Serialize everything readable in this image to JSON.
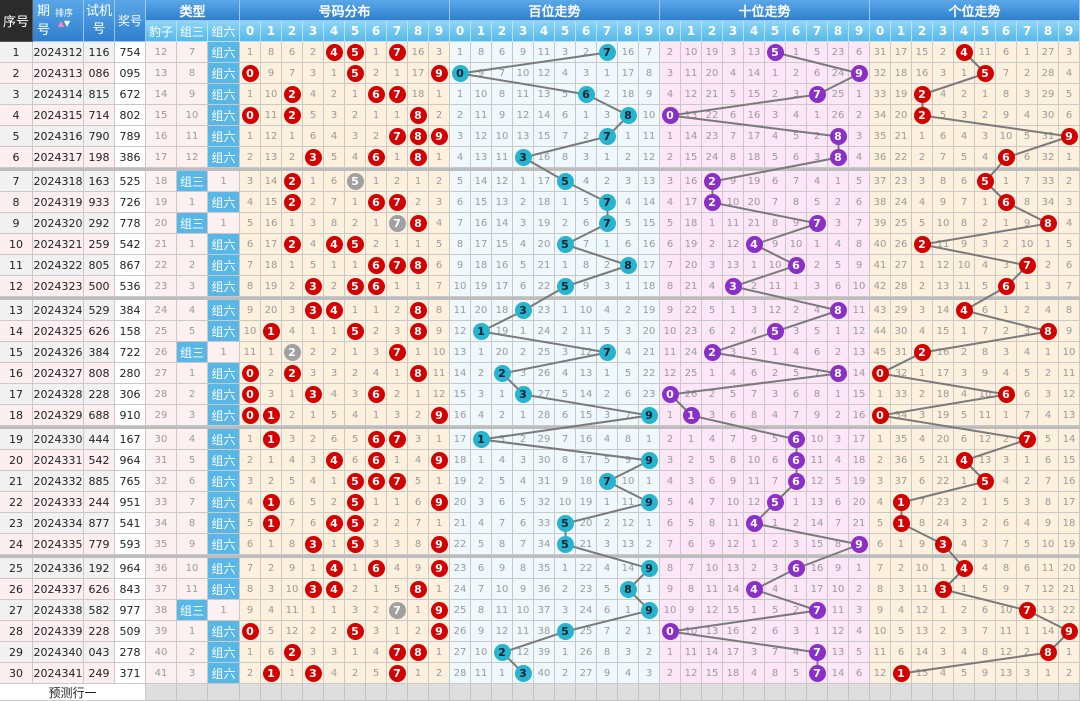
{
  "header": {
    "seq": "序号",
    "period": "期号",
    "sort": "排序",
    "test": "试机号",
    "draw": "奖号",
    "type": "类型",
    "type_cols": [
      "豹子",
      "组三",
      "组六"
    ],
    "dist": "号码分布",
    "hundreds": "百位走势",
    "tens": "十位走势",
    "units": "个位走势",
    "digits": [
      "0",
      "1",
      "2",
      "3",
      "4",
      "5",
      "6",
      "7",
      "8",
      "9"
    ]
  },
  "rows": [
    {
      "seq": "1",
      "period": "2024312",
      "test": "116",
      "draw": "754"
    },
    {
      "seq": "2",
      "period": "2024313",
      "test": "086",
      "draw": "095"
    },
    {
      "seq": "3",
      "period": "2024314",
      "test": "815",
      "draw": "672"
    },
    {
      "seq": "4",
      "period": "2024315",
      "test": "714",
      "draw": "802"
    },
    {
      "seq": "5",
      "period": "2024316",
      "test": "790",
      "draw": "789"
    },
    {
      "seq": "6",
      "period": "2024317",
      "test": "198",
      "draw": "386"
    },
    {
      "seq": "7",
      "period": "2024318",
      "test": "163",
      "draw": "525"
    },
    {
      "seq": "8",
      "period": "2024319",
      "test": "933",
      "draw": "726"
    },
    {
      "seq": "9",
      "period": "2024320",
      "test": "292",
      "draw": "778"
    },
    {
      "seq": "10",
      "period": "2024321",
      "test": "259",
      "draw": "542"
    },
    {
      "seq": "11",
      "period": "2024322",
      "test": "805",
      "draw": "867"
    },
    {
      "seq": "12",
      "period": "2024323",
      "test": "500",
      "draw": "536"
    },
    {
      "seq": "13",
      "period": "2024324",
      "test": "529",
      "draw": "384"
    },
    {
      "seq": "14",
      "period": "2024325",
      "test": "626",
      "draw": "158"
    },
    {
      "seq": "15",
      "period": "2024326",
      "test": "384",
      "draw": "722"
    },
    {
      "seq": "16",
      "period": "2024327",
      "test": "808",
      "draw": "280"
    },
    {
      "seq": "17",
      "period": "2024328",
      "test": "228",
      "draw": "306"
    },
    {
      "seq": "18",
      "period": "2024329",
      "test": "688",
      "draw": "910"
    },
    {
      "seq": "19",
      "period": "2024330",
      "test": "444",
      "draw": "167"
    },
    {
      "seq": "20",
      "period": "2024331",
      "test": "542",
      "draw": "964"
    },
    {
      "seq": "21",
      "period": "2024332",
      "test": "885",
      "draw": "765"
    },
    {
      "seq": "22",
      "period": "2024333",
      "test": "244",
      "draw": "951"
    },
    {
      "seq": "23",
      "period": "2024334",
      "test": "877",
      "draw": "541"
    },
    {
      "seq": "24",
      "period": "2024335",
      "test": "779",
      "draw": "593"
    },
    {
      "seq": "25",
      "period": "2024336",
      "test": "192",
      "draw": "964"
    },
    {
      "seq": "26",
      "period": "2024337",
      "test": "626",
      "draw": "843"
    },
    {
      "seq": "27",
      "period": "2024338",
      "test": "582",
      "draw": "977"
    },
    {
      "seq": "28",
      "period": "2024339",
      "test": "228",
      "draw": "509"
    },
    {
      "seq": "29",
      "period": "2024340",
      "test": "043",
      "draw": "278"
    },
    {
      "seq": "30",
      "period": "2024341",
      "test": "249",
      "draw": "371"
    }
  ],
  "first_row_omissions": {
    "type": [
      12,
      7,
      0
    ],
    "dist": [
      1,
      8,
      6,
      2,
      0,
      0,
      1,
      0,
      16,
      3
    ],
    "hundreds": [
      1,
      8,
      6,
      9,
      11,
      3,
      2,
      0,
      16,
      7
    ],
    "tens": [
      2,
      10,
      19,
      3,
      13,
      0,
      1,
      5,
      23,
      6
    ],
    "units": [
      31,
      17,
      15,
      2,
      0,
      11,
      6,
      1,
      27,
      3
    ]
  },
  "footer": {
    "label": "预测行一"
  },
  "colors": {
    "dist_ball": "#d40000",
    "repeat_ball": "#a0a0a0",
    "hundreds_ball": "#26b4cf",
    "tens_ball": "#8b2fc9",
    "units_ball": "#d40000",
    "dist_bg": "#fdf0dd",
    "hundreds_bg": "#eff8fc",
    "tens_bg": "#fce6f8",
    "units_bg": "#fdf0dd",
    "type_hit_bg": "#58b7e6",
    "trend_line": "#7a7a7a"
  }
}
